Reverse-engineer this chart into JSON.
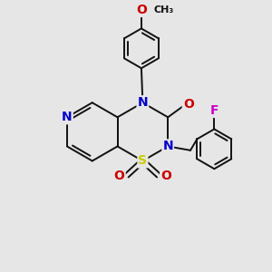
{
  "bg_color": "#e6e6e6",
  "bond_color": "#111111",
  "bond_width": 1.4,
  "atom_colors": {
    "N": "#0000cc",
    "O": "#cc0000",
    "S": "#cccc00",
    "F": "#cc00cc",
    "C": "#111111"
  },
  "font_size": 10
}
